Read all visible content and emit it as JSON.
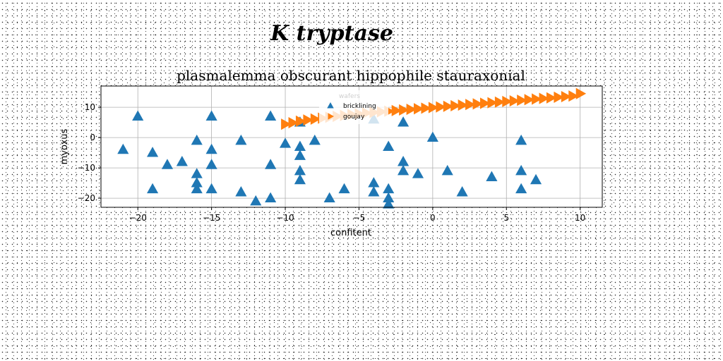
{
  "suptitle": "K tryptase",
  "chart_data": {
    "type": "scatter",
    "title": "plasmalemma obscurant hippophile stauraxonial",
    "xlabel": "confitent",
    "ylabel": "myoxus",
    "xlim": [
      -22.5,
      11.5
    ],
    "ylim": [
      -23,
      17
    ],
    "xticks": [
      -20,
      -15,
      -10,
      -5,
      0,
      5,
      10
    ],
    "yticks": [
      -20,
      -10,
      0,
      10
    ],
    "grid": true,
    "legend": {
      "title": "wafers",
      "placement": "upper center"
    },
    "series": [
      {
        "name": "bricklining",
        "marker": "triangle-up",
        "color": "#1f77b4",
        "points": [
          [
            -21,
            -4
          ],
          [
            -20,
            7
          ],
          [
            -19,
            -5
          ],
          [
            -19,
            -17
          ],
          [
            -18,
            -9
          ],
          [
            -17,
            -8
          ],
          [
            -16,
            -1
          ],
          [
            -16,
            -12
          ],
          [
            -16,
            -15
          ],
          [
            -16,
            -17
          ],
          [
            -15,
            7
          ],
          [
            -15,
            -4
          ],
          [
            -15,
            -9
          ],
          [
            -15,
            -17
          ],
          [
            -13,
            -1
          ],
          [
            -13,
            -18
          ],
          [
            -12,
            -21
          ],
          [
            -11,
            7
          ],
          [
            -11,
            -9
          ],
          [
            -11,
            -20
          ],
          [
            -10,
            -2
          ],
          [
            -9,
            5
          ],
          [
            -9,
            -3
          ],
          [
            -9,
            -6
          ],
          [
            -9,
            -11
          ],
          [
            -9,
            -14
          ],
          [
            -8,
            -1
          ],
          [
            -7,
            -20
          ],
          [
            -6,
            -17
          ],
          [
            -4,
            6
          ],
          [
            -4,
            -15
          ],
          [
            -4,
            -18
          ],
          [
            -3,
            -3
          ],
          [
            -3,
            -17
          ],
          [
            -3,
            -20
          ],
          [
            -3,
            -22
          ],
          [
            -2,
            5
          ],
          [
            -2,
            -8
          ],
          [
            -2,
            -11
          ],
          [
            -1,
            -12
          ],
          [
            0,
            0
          ],
          [
            1,
            -11
          ],
          [
            2,
            -18
          ],
          [
            4,
            -13
          ],
          [
            6,
            -1
          ],
          [
            6,
            -11
          ],
          [
            6,
            -17
          ],
          [
            7,
            -14
          ]
        ]
      },
      {
        "name": "goujay",
        "marker": "triangle-right",
        "color": "#ff7f0e",
        "points": [
          [
            -10,
            4.4
          ],
          [
            -9.5,
            4.9
          ],
          [
            -9,
            5.4
          ],
          [
            -8.5,
            5.8
          ],
          [
            -8,
            6.1
          ],
          [
            -7.5,
            6.4
          ],
          [
            -7,
            6.7
          ],
          [
            -6.5,
            7.0
          ],
          [
            -6,
            7.3
          ],
          [
            -5.5,
            7.6
          ],
          [
            -5,
            7.8
          ],
          [
            -4.5,
            8.1
          ],
          [
            -4,
            8.3
          ],
          [
            -3.5,
            8.5
          ],
          [
            -3,
            8.7
          ],
          [
            -2.5,
            8.9
          ],
          [
            -2,
            9.1
          ],
          [
            -1.5,
            9.3
          ],
          [
            -1,
            9.5
          ],
          [
            -0.5,
            9.7
          ],
          [
            0,
            9.9
          ],
          [
            0.5,
            10.1
          ],
          [
            1,
            10.3
          ],
          [
            1.5,
            10.5
          ],
          [
            2,
            10.7
          ],
          [
            2.5,
            10.9
          ],
          [
            3,
            11.1
          ],
          [
            3.5,
            11.3
          ],
          [
            4,
            11.5
          ],
          [
            4.5,
            11.7
          ],
          [
            5,
            11.9
          ],
          [
            5.5,
            12.1
          ],
          [
            6,
            12.3
          ],
          [
            6.5,
            12.5
          ],
          [
            7,
            12.7
          ],
          [
            7.5,
            12.9
          ],
          [
            8,
            13.1
          ],
          [
            8.5,
            13.3
          ],
          [
            9,
            13.5
          ],
          [
            9.5,
            13.7
          ],
          [
            10,
            14.5
          ]
        ]
      }
    ]
  }
}
